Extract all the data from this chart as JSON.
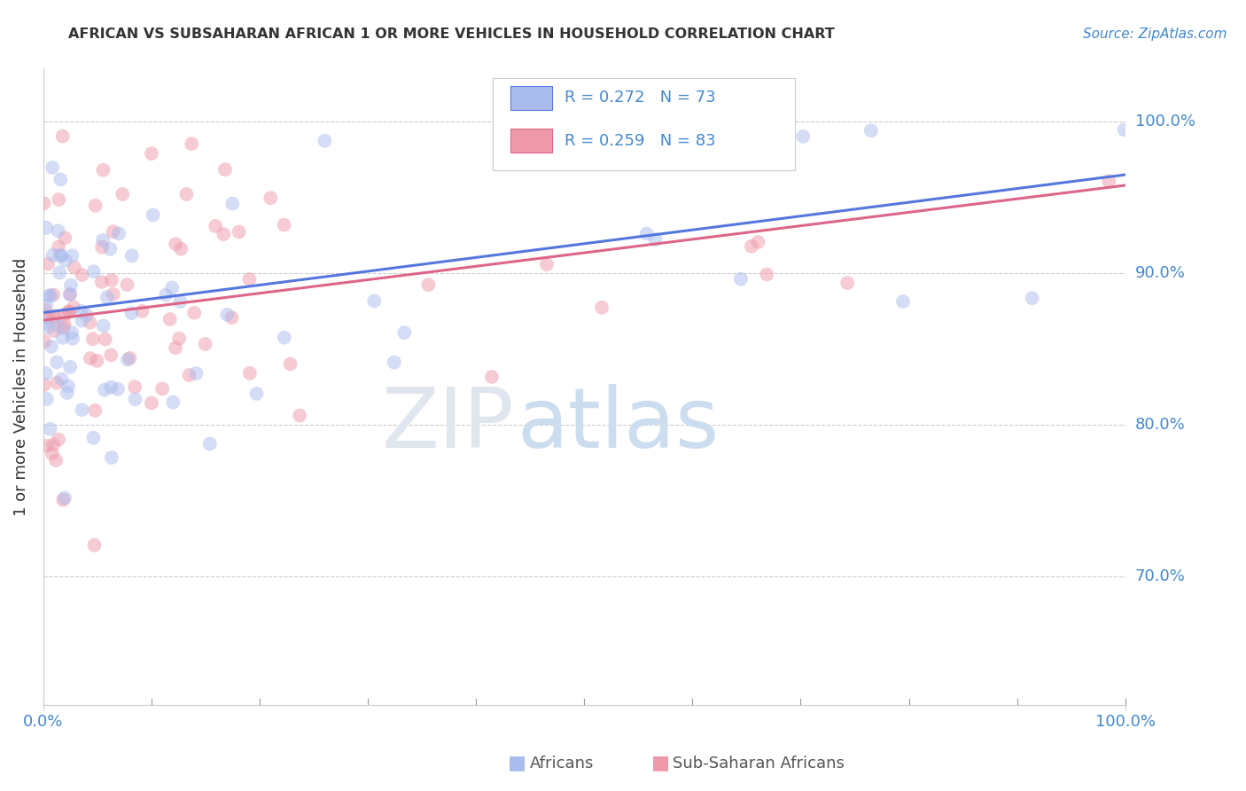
{
  "title": "AFRICAN VS SUBSAHARAN AFRICAN 1 OR MORE VEHICLES IN HOUSEHOLD CORRELATION CHART",
  "source": "Source: ZipAtlas.com",
  "ylabel": "1 or more Vehicles in Household",
  "ytick_labels": [
    "70.0%",
    "80.0%",
    "90.0%",
    "100.0%"
  ],
  "ytick_values": [
    0.7,
    0.8,
    0.9,
    1.0
  ],
  "legend_africans": "Africans",
  "legend_subsaharan": "Sub-Saharan Africans",
  "R_african": 0.272,
  "N_african": 73,
  "R_subsaharan": 0.259,
  "N_subsaharan": 83,
  "color_african": "#aabbee",
  "color_subsaharan": "#ee99aa",
  "color_text_blue": "#4488cc",
  "line_color_african": "#5577dd",
  "line_color_subsaharan": "#dd6688",
  "xlim": [
    0.0,
    1.0
  ],
  "ylim": [
    0.615,
    1.035
  ],
  "scatter_size": 130,
  "scatter_alpha": 0.5,
  "reg_line_start_y_african": 0.874,
  "reg_line_end_y_african": 0.965,
  "reg_line_start_y_subsaharan": 0.869,
  "reg_line_end_y_subsaharan": 0.958
}
